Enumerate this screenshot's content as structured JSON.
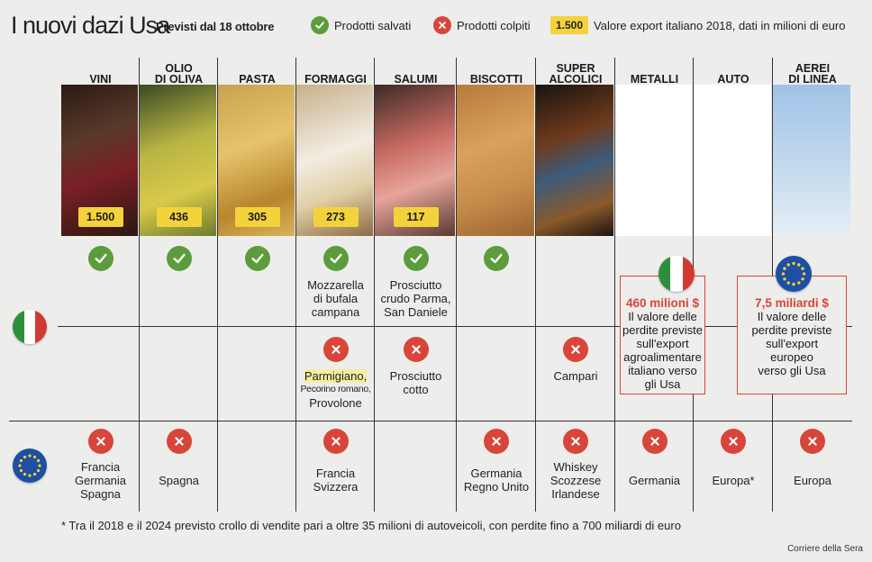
{
  "header": {
    "title": "I nuovi dazi Usa",
    "subtitle": "Previsti dal 18 ottobre",
    "legend_saved": "Prodotti salvati",
    "legend_hit": "Prodotti colpiti",
    "legend_value_badge": "1.500",
    "legend_value": "Valore export italiano 2018, dati in milioni di euro"
  },
  "columns": [
    {
      "l1": "",
      "l2": "VINI",
      "value": "1.500",
      "it_saved": true,
      "it_saved_text": "",
      "it_hit": false,
      "it_hit_text": "",
      "eu_hit": true,
      "eu_text": "Francia\nGermania\nSpagna"
    },
    {
      "l1": "OLIO",
      "l2": "DI OLIVA",
      "value": "436",
      "it_saved": true,
      "it_saved_text": "",
      "it_hit": false,
      "it_hit_text": "",
      "eu_hit": true,
      "eu_text": "Spagna"
    },
    {
      "l1": "",
      "l2": "PASTA",
      "value": "305",
      "it_saved": true,
      "it_saved_text": "",
      "it_hit": false,
      "it_hit_text": "",
      "eu_hit": false,
      "eu_text": ""
    },
    {
      "l1": "",
      "l2": "FORMAGGI",
      "value": "273",
      "it_saved": true,
      "it_saved_text": "Mozzarella\ndi bufala\ncampana",
      "it_hit": true,
      "it_hit_text": "",
      "eu_hit": true,
      "eu_text": "Francia\nSvizzera"
    },
    {
      "l1": "",
      "l2": "SALUMI",
      "value": "117",
      "it_saved": true,
      "it_saved_text": "Prosciutto\ncrudo Parma,\nSan Daniele",
      "it_hit": true,
      "it_hit_text": "Prosciutto\ncotto",
      "eu_hit": false,
      "eu_text": ""
    },
    {
      "l1": "",
      "l2": "BISCOTTI",
      "value": "",
      "it_saved": true,
      "it_saved_text": "",
      "it_hit": false,
      "it_hit_text": "",
      "eu_hit": true,
      "eu_text": "Germania\nRegno Unito"
    },
    {
      "l1": "SUPER",
      "l2": "ALCOLICI",
      "value": "",
      "it_saved": false,
      "it_saved_text": "",
      "it_hit": true,
      "it_hit_text": "Campari",
      "eu_hit": true,
      "eu_text": "Whiskey\nScozzese\nIrlandese"
    },
    {
      "l1": "",
      "l2": "METALLI",
      "value": "",
      "it_saved": false,
      "it_saved_text": "",
      "it_hit": false,
      "it_hit_text": "",
      "eu_hit": true,
      "eu_text": "Germania"
    },
    {
      "l1": "",
      "l2": "AUTO",
      "value": "",
      "it_saved": false,
      "it_saved_text": "",
      "it_hit": false,
      "it_hit_text": "",
      "eu_hit": true,
      "eu_text": "Europa*"
    },
    {
      "l1": "AEREI",
      "l2": "DI LINEA",
      "value": "",
      "it_saved": false,
      "it_saved_text": "",
      "it_hit": false,
      "it_hit_text": "",
      "eu_hit": true,
      "eu_text": "Europa"
    }
  ],
  "formaggi_hit": {
    "parmigiano": "Parmigiano,",
    "pecorino": "Pecorino romano,",
    "provolone": "Provolone"
  },
  "loss_italy": {
    "amount": "460 milioni $",
    "text": "Il valore delle\nperdite previste\nsull'export\nagroalimentare\nitaliano verso\ngli Usa"
  },
  "loss_europe": {
    "amount": "7,5 miliardi $",
    "text": "Il valore delle\nperdite previste\nsull'export\neuropeo\nverso gli Usa"
  },
  "footnote": "* Tra il 2018 e il 2024 previsto crollo di vendite pari a oltre 35 milioni di autoveicoli, con perdite fino a 700 miliardi di euro",
  "credit": "Corriere della Sera",
  "colors": {
    "saved": "#5c9c3d",
    "hit": "#d8453a",
    "badge": "#f3d23c",
    "background": "#ededeb"
  },
  "icons": {
    "saved": "check-circle-icon",
    "hit": "x-circle-icon"
  }
}
